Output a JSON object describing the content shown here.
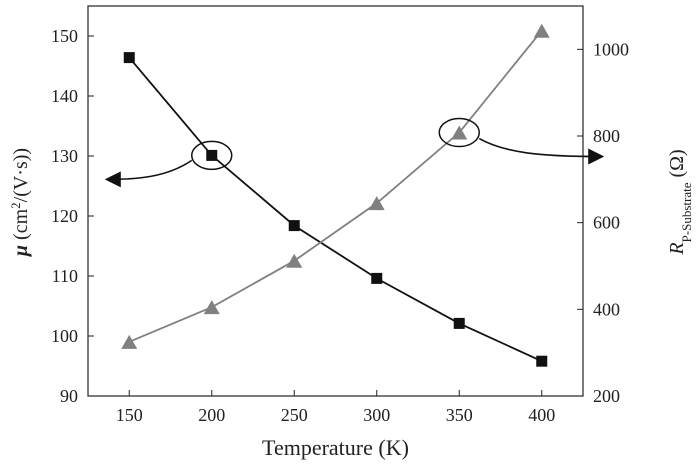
{
  "chart_data": {
    "type": "line",
    "x_values": [
      150,
      200,
      250,
      300,
      350,
      400
    ],
    "xlim": [
      125,
      425
    ],
    "left_ylim": [
      90,
      155
    ],
    "right_ylim": [
      200,
      1100
    ],
    "x_ticks": [
      150,
      200,
      250,
      300,
      350,
      400
    ],
    "left_y_ticks": [
      90,
      100,
      110,
      120,
      130,
      140,
      150
    ],
    "right_y_ticks": [
      200,
      400,
      600,
      800,
      1000
    ],
    "xlabel": "Temperature (K)",
    "left_ylabel": {
      "symbol": "μ",
      "prefix": " (cm",
      "superscript": "2",
      "suffix": "/(V·s))"
    },
    "right_ylabel": {
      "symbol": "R",
      "subscript": "P-Substrate",
      "suffix": " (Ω)"
    },
    "series": [
      {
        "axis": "left",
        "marker": "square",
        "color": "#111111",
        "values": [
          146.4,
          130.1,
          118.4,
          109.6,
          102.1,
          95.8
        ]
      },
      {
        "axis": "right",
        "marker": "triangle",
        "color": "#808080",
        "values": [
          325,
          405,
          512,
          645,
          808,
          1043
        ]
      }
    ],
    "annotations": [
      {
        "type": "circle-with-arrow",
        "target_series_axis": "left",
        "x": 200,
        "arrow_direction": "left"
      },
      {
        "type": "circle-with-arrow",
        "target_series_axis": "right",
        "x": 350,
        "arrow_direction": "right"
      }
    ]
  }
}
